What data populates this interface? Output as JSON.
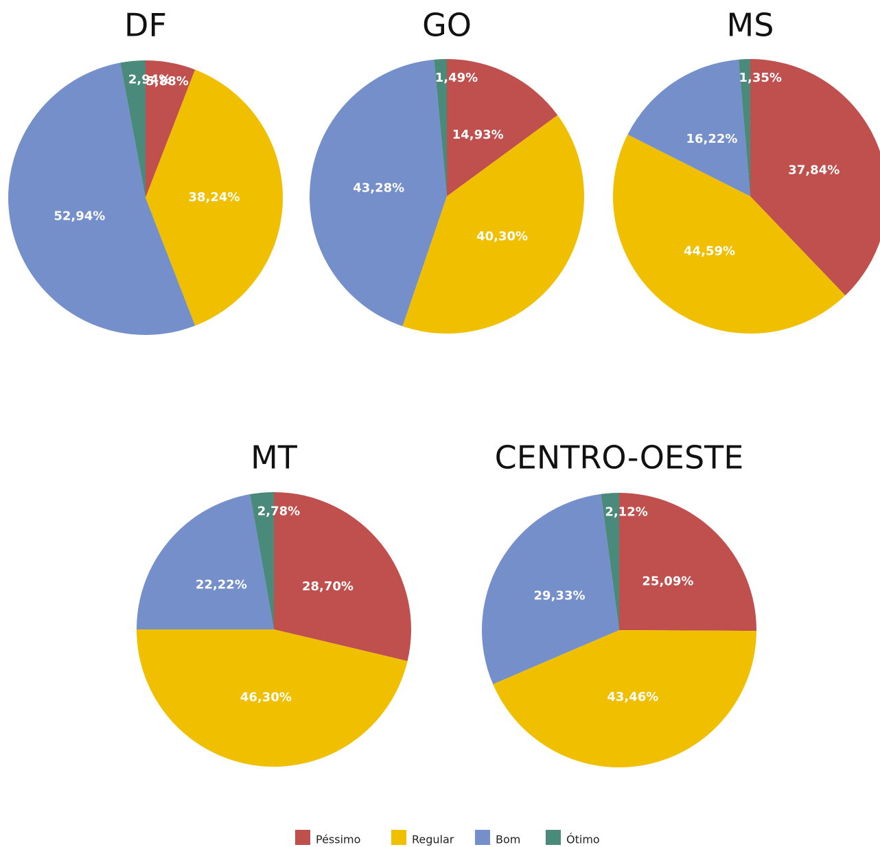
{
  "chart_data": [
    {
      "type": "pie",
      "title": "DF",
      "categories": [
        "Péssimo",
        "Regular",
        "Bom",
        "Ótimo"
      ],
      "colors": [
        "#c0504d",
        "#f0c000",
        "#758fca",
        "#4a8a7a"
      ],
      "values": [
        5.88,
        38.24,
        52.94,
        2.94
      ],
      "value_labels": [
        "5,88%",
        "38,24%",
        "52,94%",
        "2,94%"
      ]
    },
    {
      "type": "pie",
      "title": "GO",
      "categories": [
        "Péssimo",
        "Regular",
        "Bom",
        "Ótimo"
      ],
      "colors": [
        "#c0504d",
        "#f0c000",
        "#758fca",
        "#4a8a7a"
      ],
      "values": [
        14.93,
        40.3,
        43.28,
        1.49
      ],
      "value_labels": [
        "14,93%",
        "40,30%",
        "43,28%",
        "1,49%"
      ]
    },
    {
      "type": "pie",
      "title": "MS",
      "categories": [
        "Péssimo",
        "Regular",
        "Bom",
        "Ótimo"
      ],
      "colors": [
        "#c0504d",
        "#f0c000",
        "#758fca",
        "#4a8a7a"
      ],
      "values": [
        37.84,
        44.59,
        16.22,
        1.35
      ],
      "value_labels": [
        "37,84%",
        "44,59%",
        "16,22%",
        "1,35%"
      ]
    },
    {
      "type": "pie",
      "title": "MT",
      "categories": [
        "Péssimo",
        "Regular",
        "Bom",
        "Ótimo"
      ],
      "colors": [
        "#c0504d",
        "#f0c000",
        "#758fca",
        "#4a8a7a"
      ],
      "values": [
        28.7,
        46.3,
        22.22,
        2.78
      ],
      "value_labels": [
        "28,70%",
        "46,30%",
        "22,22%",
        "2,78%"
      ]
    },
    {
      "type": "pie",
      "title": "CENTRO-OESTE",
      "categories": [
        "Péssimo",
        "Regular",
        "Bom",
        "Ótimo"
      ],
      "colors": [
        "#c0504d",
        "#f0c000",
        "#758fca",
        "#4a8a7a"
      ],
      "values": [
        25.09,
        43.46,
        29.33,
        2.12
      ],
      "value_labels": [
        "25,09%",
        "43,46%",
        "29,33%",
        "2,12%"
      ]
    }
  ]
}
